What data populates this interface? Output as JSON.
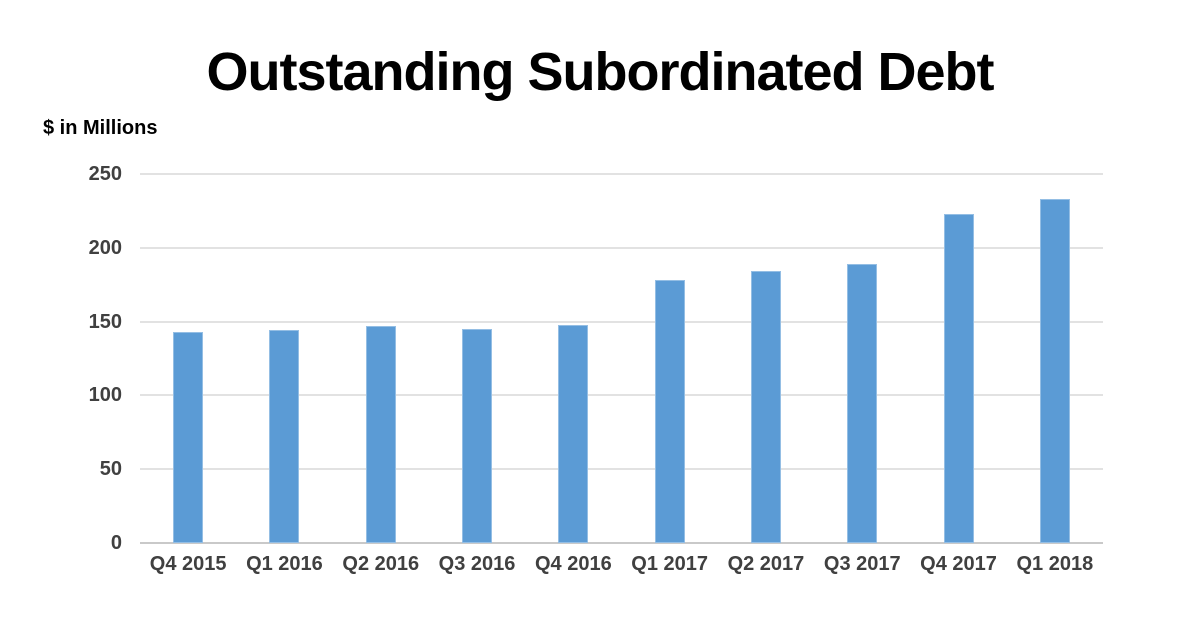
{
  "chart": {
    "title": "Outstanding Subordinated Debt",
    "units_label": "$ in Millions"
  },
  "chart_data": {
    "type": "bar",
    "title": "Outstanding Subordinated Debt",
    "subtitle": "$ in Millions",
    "categories": [
      "Q4 2015",
      "Q1 2016",
      "Q2 2016",
      "Q3 2016",
      "Q4 2016",
      "Q1 2017",
      "Q2 2017",
      "Q3 2017",
      "Q4 2017",
      "Q1 2018"
    ],
    "values": [
      143,
      144,
      147,
      145,
      148,
      178,
      184,
      189,
      223,
      233
    ],
    "xlabel": "",
    "ylabel": "$ in Millions",
    "ylim": [
      0,
      250
    ],
    "yticks": [
      0,
      50,
      100,
      150,
      200,
      250
    ],
    "grid": true,
    "legend": false,
    "bar_color": "#5B9BD5",
    "bar_edge_color": "#94BEE4",
    "gridline_color": "#E2E2E2",
    "axis_line_color": "#C9C9C9",
    "tick_label_color": "#404040",
    "background_color": "#FFFFFF"
  }
}
